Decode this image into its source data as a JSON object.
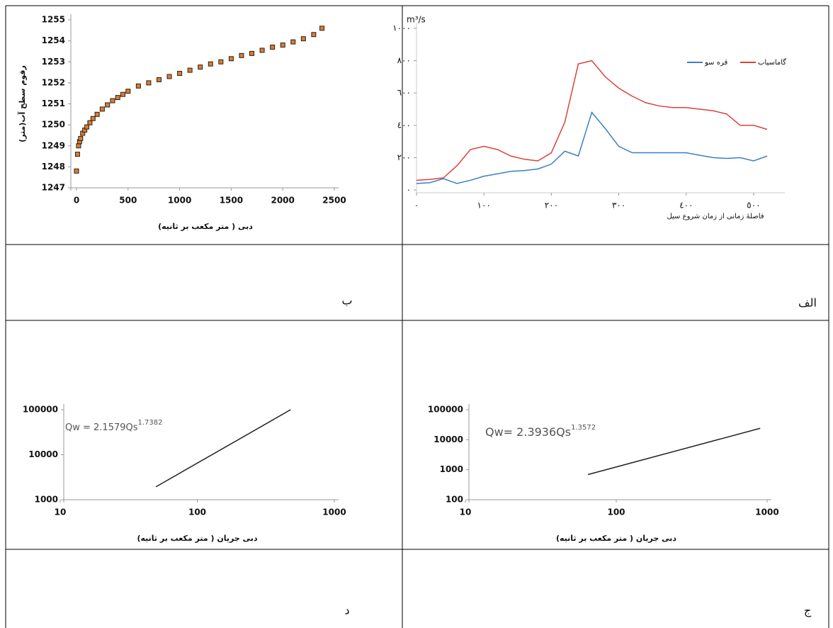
{
  "chart_data": [
    {
      "type": "scatter",
      "caption": "ب",
      "ylabel": "رقوم سطح آب(متر)",
      "xlabel": "دبی ( متر مکعب بر ثانیه)",
      "xlim": [
        0,
        2500
      ],
      "xticks": [
        0,
        500,
        1000,
        1500,
        2000,
        2500
      ],
      "ylim": [
        1247,
        1255
      ],
      "yticks": [
        1247,
        1248,
        1249,
        1250,
        1251,
        1252,
        1253,
        1254,
        1255
      ],
      "color": "#e07b2a",
      "x": [
        0,
        10,
        20,
        30,
        40,
        60,
        80,
        100,
        130,
        160,
        200,
        250,
        300,
        350,
        400,
        450,
        500,
        600,
        700,
        800,
        900,
        1000,
        1100,
        1200,
        1300,
        1400,
        1500,
        1600,
        1700,
        1800,
        1900,
        2000,
        2100,
        2200,
        2300,
        2380
      ],
      "values": [
        1247.8,
        1248.6,
        1249.0,
        1249.2,
        1249.35,
        1249.6,
        1249.75,
        1249.9,
        1250.1,
        1250.3,
        1250.5,
        1250.75,
        1250.95,
        1251.15,
        1251.3,
        1251.45,
        1251.6,
        1251.85,
        1252.0,
        1252.15,
        1252.3,
        1252.45,
        1252.6,
        1252.75,
        1252.9,
        1253.0,
        1253.15,
        1253.3,
        1253.4,
        1253.55,
        1253.7,
        1253.8,
        1253.95,
        1254.1,
        1254.3,
        1254.6
      ]
    },
    {
      "type": "line",
      "caption": "الف",
      "unit": "m³/s",
      "xlabel": "فاصلهٔ زمانی از زمان شروع سیل",
      "xlim": [
        0,
        540
      ],
      "xticks": [
        {
          "value": 0,
          "label": "٠"
        },
        {
          "value": 100,
          "label": "١٠٠"
        },
        {
          "value": 200,
          "label": "٢٠٠"
        },
        {
          "value": 300,
          "label": "٣٠٠"
        },
        {
          "value": 400,
          "label": "٤٠٠"
        },
        {
          "value": 500,
          "label": "٥٠٠"
        }
      ],
      "ylim": [
        0,
        1000
      ],
      "yticks": [
        {
          "value": 0,
          "label": "٠"
        },
        {
          "value": 200,
          "label": "٢٠٠"
        },
        {
          "value": 400,
          "label": "٤٠٠"
        },
        {
          "value": 600,
          "label": "٦٠٠"
        },
        {
          "value": 800,
          "label": "٨٠٠"
        },
        {
          "value": 1000,
          "label": "١٠٠٠"
        }
      ],
      "x": [
        0,
        20,
        40,
        60,
        80,
        100,
        120,
        140,
        160,
        180,
        200,
        220,
        240,
        260,
        280,
        300,
        320,
        340,
        360,
        380,
        400,
        420,
        440,
        460,
        480,
        500,
        520
      ],
      "series": [
        {
          "name": "گاماسیاب",
          "color": "#d9423d",
          "values": [
            60,
            65,
            75,
            150,
            250,
            270,
            250,
            210,
            190,
            180,
            230,
            420,
            780,
            800,
            700,
            630,
            580,
            540,
            520,
            510,
            510,
            500,
            490,
            470,
            400,
            400,
            375
          ]
        },
        {
          "name": "قره سو",
          "color": "#3c7fc4",
          "values": [
            40,
            45,
            70,
            40,
            60,
            85,
            100,
            115,
            120,
            130,
            160,
            240,
            210,
            480,
            380,
            270,
            230,
            230,
            230,
            230,
            230,
            215,
            200,
            195,
            200,
            180,
            210
          ]
        }
      ]
    },
    {
      "type": "line",
      "caption": "د",
      "xscale": "log",
      "yscale": "log",
      "equation": "Qw = 2.1579Qs",
      "exponent": "1.7382",
      "xlabel": "دبی جریان ( متر مکعب بر ثانیه)",
      "xlim": [
        10,
        1000
      ],
      "xticks": [
        10,
        100,
        1000
      ],
      "ylim": [
        1000,
        100000
      ],
      "yticks": [
        1000,
        10000,
        100000
      ],
      "series": [
        {
          "color": "#222222",
          "x": [
            50,
            480
          ],
          "values": [
            1940,
            100000
          ]
        }
      ]
    },
    {
      "type": "line",
      "caption": "ج",
      "xscale": "log",
      "yscale": "log",
      "equation": "Qw= 2.3936Qs",
      "exponent": "1.3572",
      "xlabel": "دبی جریان ( متر مکعب بر ثانیه)",
      "xlim": [
        10,
        1000
      ],
      "xticks": [
        10,
        100,
        1000
      ],
      "ylim": [
        100,
        100000
      ],
      "yticks": [
        100,
        1000,
        10000,
        100000
      ],
      "series": [
        {
          "color": "#222222",
          "x": [
            65,
            900
          ],
          "values": [
            690,
            24000
          ]
        }
      ]
    }
  ]
}
